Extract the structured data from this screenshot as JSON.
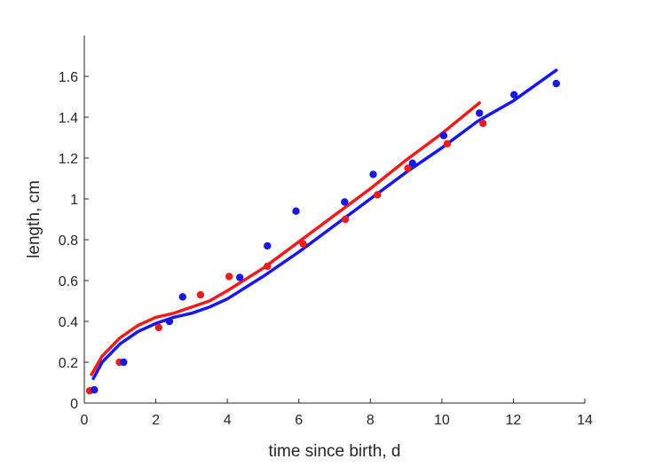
{
  "chart_data": {
    "type": "scatter",
    "xlabel": "time since birth, d",
    "ylabel": "length, cm",
    "xlim": [
      0,
      14
    ],
    "ylim": [
      0,
      1.8
    ],
    "xticks": [
      0,
      2,
      4,
      6,
      8,
      10,
      12,
      14
    ],
    "xtick_labels": [
      "0",
      "2",
      "4",
      "6",
      "8",
      "10",
      "12",
      "14"
    ],
    "yticks": [
      0,
      0.2,
      0.4,
      0.6,
      0.8,
      1.0,
      1.2,
      1.4,
      1.6
    ],
    "ytick_labels": [
      "0",
      "0.2",
      "0.4",
      "0.6",
      "0.8",
      "1",
      "1.2",
      "1.4",
      "1.6"
    ],
    "grid": false,
    "legend": "none",
    "series": [
      {
        "color": "#ee1c1c",
        "points": [
          [
            0.15,
            0.06
          ],
          [
            0.98,
            0.2
          ],
          [
            2.08,
            0.37
          ],
          [
            3.25,
            0.53
          ],
          [
            4.05,
            0.62
          ],
          [
            5.12,
            0.67
          ],
          [
            6.12,
            0.78
          ],
          [
            7.3,
            0.9
          ],
          [
            8.2,
            1.02
          ],
          [
            9.05,
            1.15
          ],
          [
            10.15,
            1.27
          ],
          [
            11.15,
            1.37
          ]
        ],
        "fit_curve": [
          [
            0.2,
            0.14
          ],
          [
            0.5,
            0.23
          ],
          [
            1.0,
            0.32
          ],
          [
            1.5,
            0.38
          ],
          [
            2.0,
            0.42
          ],
          [
            2.5,
            0.44
          ],
          [
            3.0,
            0.47
          ],
          [
            3.5,
            0.5
          ],
          [
            4.0,
            0.55
          ],
          [
            5.0,
            0.66
          ],
          [
            6.0,
            0.79
          ],
          [
            7.0,
            0.92
          ],
          [
            8.0,
            1.05
          ],
          [
            9.0,
            1.19
          ],
          [
            10.0,
            1.32
          ],
          [
            11.05,
            1.47
          ]
        ]
      },
      {
        "color": "#1717e6",
        "points": [
          [
            0.28,
            0.065
          ],
          [
            1.1,
            0.2
          ],
          [
            2.38,
            0.4
          ],
          [
            2.75,
            0.52
          ],
          [
            4.35,
            0.615
          ],
          [
            5.12,
            0.77
          ],
          [
            5.92,
            0.94
          ],
          [
            7.28,
            0.985
          ],
          [
            8.08,
            1.12
          ],
          [
            9.18,
            1.175
          ],
          [
            10.05,
            1.31
          ],
          [
            11.05,
            1.42
          ],
          [
            12.02,
            1.51
          ],
          [
            13.2,
            1.565
          ]
        ],
        "fit_curve": [
          [
            0.25,
            0.12
          ],
          [
            0.5,
            0.2
          ],
          [
            1.0,
            0.29
          ],
          [
            1.5,
            0.35
          ],
          [
            2.0,
            0.39
          ],
          [
            2.5,
            0.42
          ],
          [
            3.0,
            0.44
          ],
          [
            3.5,
            0.47
          ],
          [
            4.0,
            0.51
          ],
          [
            5.0,
            0.62
          ],
          [
            6.0,
            0.74
          ],
          [
            7.0,
            0.87
          ],
          [
            8.0,
            1.0
          ],
          [
            9.0,
            1.13
          ],
          [
            10.0,
            1.25
          ],
          [
            11.0,
            1.38
          ],
          [
            12.0,
            1.48
          ],
          [
            13.2,
            1.63
          ]
        ]
      }
    ]
  }
}
